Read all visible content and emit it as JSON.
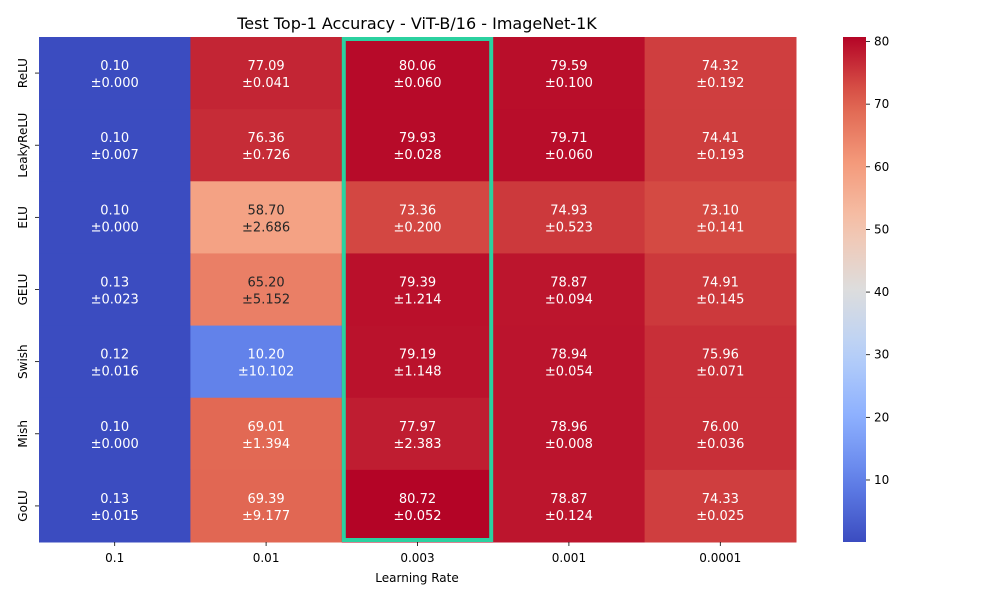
{
  "chart_data": {
    "type": "heatmap",
    "title": "Test Top-1 Accuracy - ViT-B/16 - ImageNet-1K",
    "xlabel": "Learning Rate",
    "ylabel": "",
    "x_categories": [
      "0.1",
      "0.01",
      "0.003",
      "0.001",
      "0.0001"
    ],
    "y_categories": [
      "ReLU",
      "LeakyReLU",
      "ELU",
      "GELU",
      "Swish",
      "Mish",
      "GoLU"
    ],
    "values": [
      [
        0.1,
        77.09,
        80.06,
        79.59,
        74.32
      ],
      [
        0.1,
        76.36,
        79.93,
        79.71,
        74.41
      ],
      [
        0.1,
        58.7,
        73.36,
        74.93,
        73.1
      ],
      [
        0.13,
        65.2,
        79.39,
        78.87,
        74.91
      ],
      [
        0.12,
        10.2,
        79.19,
        78.94,
        75.96
      ],
      [
        0.1,
        69.01,
        77.97,
        78.96,
        76.0
      ],
      [
        0.13,
        69.39,
        80.72,
        78.87,
        74.33
      ]
    ],
    "value_labels": [
      [
        "0.10",
        "77.09",
        "80.06",
        "79.59",
        "74.32"
      ],
      [
        "0.10",
        "76.36",
        "79.93",
        "79.71",
        "74.41"
      ],
      [
        "0.10",
        "58.70",
        "73.36",
        "74.93",
        "73.10"
      ],
      [
        "0.13",
        "65.20",
        "79.39",
        "78.87",
        "74.91"
      ],
      [
        "0.12",
        "10.20",
        "79.19",
        "78.94",
        "75.96"
      ],
      [
        "0.10",
        "69.01",
        "77.97",
        "78.96",
        "76.00"
      ],
      [
        "0.13",
        "69.39",
        "80.72",
        "78.87",
        "74.33"
      ]
    ],
    "std_labels": [
      [
        "±0.000",
        "±0.041",
        "±0.060",
        "±0.100",
        "±0.192"
      ],
      [
        "±0.007",
        "±0.726",
        "±0.028",
        "±0.060",
        "±0.193"
      ],
      [
        "±0.000",
        "±2.686",
        "±0.200",
        "±0.523",
        "±0.141"
      ],
      [
        "±0.023",
        "±5.152",
        "±1.214",
        "±0.094",
        "±0.145"
      ],
      [
        "±0.016",
        "±10.102",
        "±1.148",
        "±0.054",
        "±0.071"
      ],
      [
        "±0.000",
        "±1.394",
        "±2.383",
        "±0.008",
        "±0.036"
      ],
      [
        "±0.015",
        "±9.177",
        "±0.052",
        "±0.124",
        "±0.025"
      ]
    ],
    "colormap": "coolwarm",
    "color_range": [
      0.1,
      80.72
    ],
    "colorbar_ticks": [
      10,
      20,
      30,
      40,
      50,
      60,
      70,
      80
    ],
    "highlight_column": "0.003",
    "highlight_color": "#2bd1a0"
  }
}
